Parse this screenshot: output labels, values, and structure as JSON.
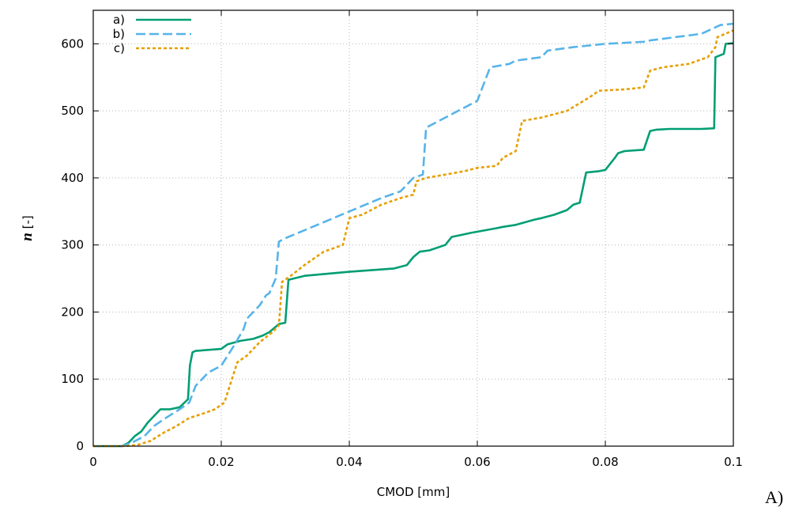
{
  "chart_data": {
    "type": "line",
    "xlabel": "CMOD [mm]",
    "ylabel_italic": "n",
    "ylabel_unit": " [-]",
    "xlim": [
      0,
      0.1
    ],
    "ylim": [
      0,
      650
    ],
    "xticks": [
      0,
      0.02,
      0.04,
      0.06,
      0.08,
      0.1
    ],
    "xtick_labels": [
      "0",
      "0.02",
      "0.04",
      "0.06",
      "0.08",
      "0.1"
    ],
    "yticks": [
      0,
      100,
      200,
      300,
      400,
      500,
      600
    ],
    "ytick_labels": [
      "0",
      "100",
      "200",
      "300",
      "400",
      "500",
      "600"
    ],
    "grid": true,
    "legend_position": "top-left",
    "panel_label": "A)",
    "series": [
      {
        "name": "a)",
        "color": "#009e73",
        "dash": "solid",
        "x": [
          0,
          0.0045,
          0.0055,
          0.0065,
          0.0075,
          0.0085,
          0.0095,
          0.0105,
          0.012,
          0.0135,
          0.0148,
          0.0151,
          0.0155,
          0.016,
          0.02,
          0.021,
          0.023,
          0.025,
          0.0265,
          0.0275,
          0.0285,
          0.029,
          0.03,
          0.0305,
          0.033,
          0.04,
          0.047,
          0.049,
          0.05,
          0.051,
          0.0525,
          0.055,
          0.056,
          0.0575,
          0.058,
          0.059,
          0.063,
          0.064,
          0.066,
          0.069,
          0.07,
          0.072,
          0.074,
          0.075,
          0.076,
          0.077,
          0.079,
          0.08,
          0.0815,
          0.082,
          0.083,
          0.086,
          0.087,
          0.088,
          0.09,
          0.095,
          0.097,
          0.0972,
          0.0985,
          0.0988,
          0.1
        ],
        "y": [
          0,
          0,
          5,
          15,
          22,
          35,
          45,
          55,
          55,
          58,
          70,
          120,
          140,
          142,
          145,
          152,
          157,
          160,
          165,
          170,
          178,
          182,
          184,
          248,
          254,
          260,
          265,
          270,
          282,
          290,
          292,
          300,
          312,
          315,
          316,
          318,
          325,
          327,
          330,
          338,
          340,
          345,
          352,
          360,
          363,
          408,
          410,
          412,
          430,
          437,
          440,
          442,
          470,
          472,
          473,
          473,
          474,
          580,
          585,
          600,
          601
        ]
      },
      {
        "name": "b)",
        "color": "#56b4e9",
        "dash": "dashed",
        "x": [
          0,
          0.0045,
          0.006,
          0.008,
          0.0095,
          0.011,
          0.0135,
          0.015,
          0.016,
          0.017,
          0.018,
          0.02,
          0.022,
          0.0235,
          0.024,
          0.025,
          0.026,
          0.027,
          0.0275,
          0.0285,
          0.029,
          0.03,
          0.035,
          0.04,
          0.045,
          0.048,
          0.05,
          0.0515,
          0.052,
          0.055,
          0.059,
          0.06,
          0.062,
          0.065,
          0.066,
          0.07,
          0.071,
          0.075,
          0.08,
          0.086,
          0.087,
          0.095,
          0.098,
          0.1
        ],
        "y": [
          0,
          0,
          5,
          15,
          30,
          40,
          55,
          65,
          90,
          100,
          110,
          120,
          150,
          175,
          190,
          200,
          210,
          225,
          228,
          250,
          305,
          310,
          330,
          350,
          370,
          380,
          400,
          405,
          475,
          490,
          510,
          515,
          565,
          570,
          575,
          580,
          590,
          595,
          600,
          603,
          605,
          615,
          628,
          630
        ]
      },
      {
        "name": "c)",
        "color": "#e69f00",
        "dash": "dotted",
        "x": [
          0,
          0.005,
          0.007,
          0.009,
          0.011,
          0.013,
          0.015,
          0.017,
          0.019,
          0.0205,
          0.0215,
          0.0225,
          0.024,
          0.026,
          0.028,
          0.029,
          0.0295,
          0.031,
          0.033,
          0.036,
          0.039,
          0.04,
          0.042,
          0.045,
          0.048,
          0.05,
          0.0505,
          0.052,
          0.055,
          0.058,
          0.06,
          0.063,
          0.064,
          0.066,
          0.067,
          0.07,
          0.074,
          0.0775,
          0.079,
          0.083,
          0.086,
          0.087,
          0.089,
          0.093,
          0.096,
          0.0972,
          0.0975,
          0.1
        ],
        "y": [
          0,
          0,
          2,
          8,
          20,
          30,
          42,
          48,
          55,
          65,
          95,
          125,
          135,
          155,
          170,
          180,
          245,
          255,
          270,
          290,
          300,
          340,
          345,
          360,
          370,
          375,
          395,
          400,
          405,
          410,
          415,
          418,
          430,
          440,
          485,
          490,
          500,
          520,
          530,
          532,
          535,
          560,
          565,
          570,
          580,
          595,
          610,
          620
        ]
      }
    ]
  }
}
